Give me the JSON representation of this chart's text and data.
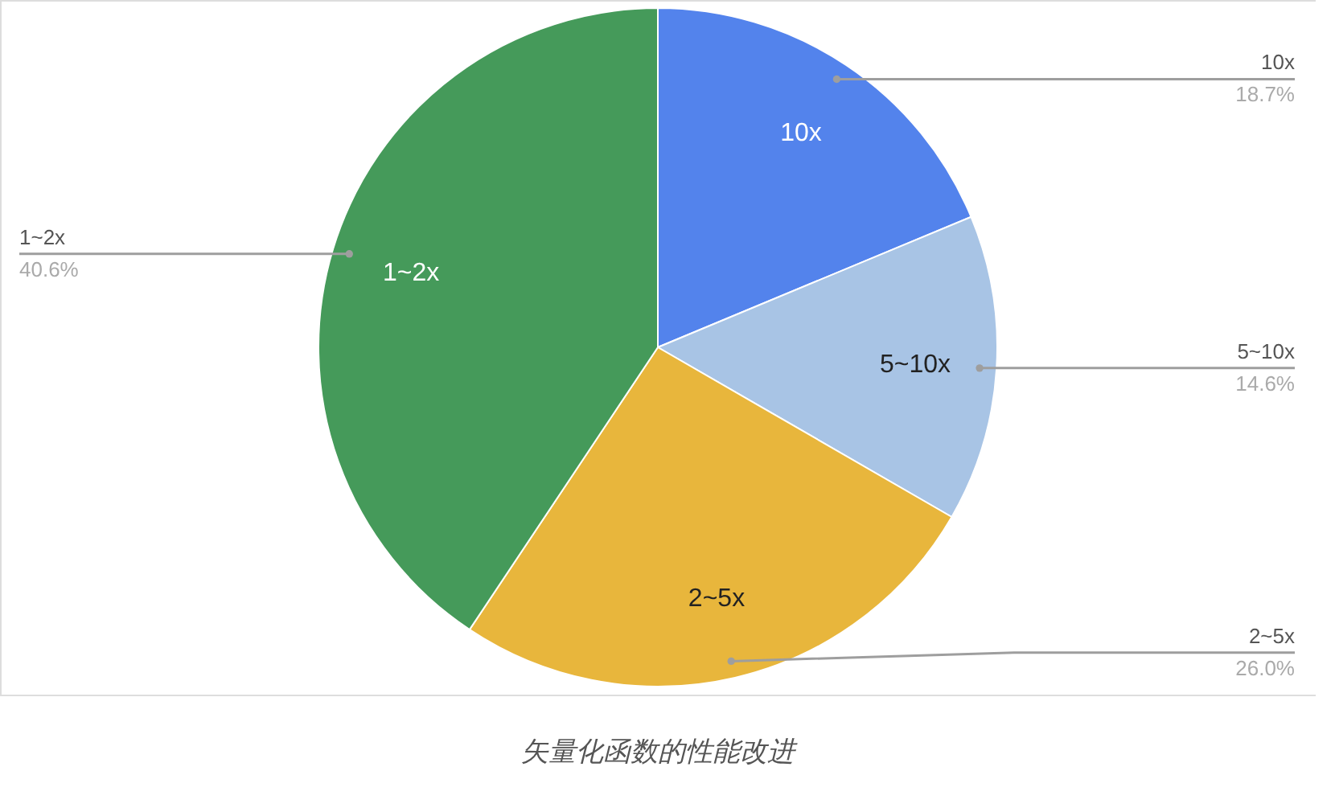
{
  "chart_data": {
    "type": "pie",
    "title": "矢量化函数的性能改进",
    "categories": [
      "10x",
      "5~10x",
      "2~5x",
      "1~2x"
    ],
    "values": [
      18.7,
      14.6,
      26.0,
      40.6
    ],
    "colors": [
      "#5383ec",
      "#a8c4e5",
      "#e8b63c",
      "#459a5a"
    ],
    "value_labels": [
      "18.7%",
      "14.6%",
      "26.0%",
      "40.6%"
    ]
  }
}
